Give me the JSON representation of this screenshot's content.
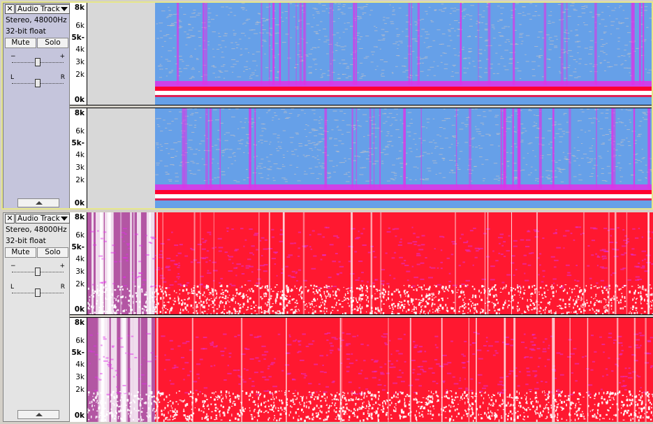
{
  "tracks": [
    {
      "name": "Audio Track",
      "format": "Stereo, 48000Hz",
      "bitdepth": "32-bit float",
      "mute": "Mute",
      "solo": "Solo",
      "gain_minus": "−",
      "gain_plus": "+",
      "pan_left": "L",
      "pan_right": "R",
      "close": "✕",
      "selected": true,
      "gain_level": 0.5,
      "pan_level": 0.5,
      "freq_ticks": [
        "8k",
        "6k",
        "5k-",
        "4k",
        "3k",
        "2k",
        "0k"
      ],
      "colors": {
        "bg": "#66a0e8",
        "hot": "#ff0030",
        "mid": "#e030e8",
        "cold": "#c0c0c8",
        "blank": "#d8d8d8"
      },
      "audio_start_fraction": 0.12
    },
    {
      "name": "Audio Track",
      "format": "Stereo, 48000Hz",
      "bitdepth": "32-bit float",
      "mute": "Mute",
      "solo": "Solo",
      "gain_minus": "−",
      "gain_plus": "+",
      "pan_left": "L",
      "pan_right": "R",
      "close": "✕",
      "selected": false,
      "gain_level": 0.5,
      "pan_level": 0.5,
      "freq_ticks": [
        "8k",
        "6k",
        "5k-",
        "4k",
        "3k",
        "2k",
        "0k"
      ],
      "colors": {
        "bg": "#ff1830",
        "hot": "#ffffff",
        "mid": "#e030e8",
        "cold": "#8080f0",
        "blank": "#ff1830"
      },
      "audio_start_fraction": 0.0
    }
  ]
}
